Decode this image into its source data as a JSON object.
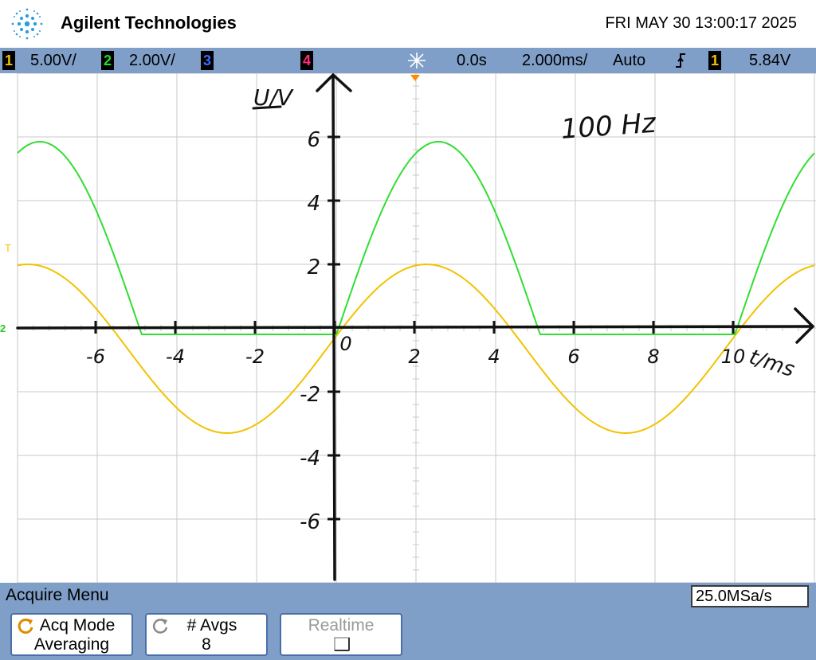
{
  "header": {
    "brand": "Agilent Technologies",
    "datetime": "FRI MAY 30 13:00:17 2025"
  },
  "status": {
    "ch1": {
      "num": "1",
      "scale": "5.00V/",
      "color": "#f2c200"
    },
    "ch2": {
      "num": "2",
      "scale": "2.00V/",
      "color": "#22dd22"
    },
    "ch3": {
      "num": "3",
      "color": "#3a6cff"
    },
    "ch4": {
      "num": "4",
      "color": "#ff2e7a"
    },
    "delay": "0.0s",
    "timebase": "2.000ms/",
    "trigger_mode": "Auto",
    "trigger_source": "1",
    "trigger_level": "5.84V"
  },
  "screen": {
    "trig_marker": "T",
    "ch2_ground_marker": "2",
    "ch1_color": "#f2c200",
    "ch2_color": "#33dd33",
    "grid_color": "#c8c8c8"
  },
  "chart_data": {
    "type": "line",
    "title": "",
    "handwritten_note": "100 Hz",
    "xlabel": "t/ms",
    "ylabel": "U/V",
    "xlim": [
      -8,
      12
    ],
    "ylim": [
      -8,
      8
    ],
    "x_ticks": [
      -6,
      -4,
      -2,
      0,
      2,
      4,
      6,
      8,
      10
    ],
    "x_tick_labels": [
      "-6",
      "-4",
      "-2",
      "0",
      "2",
      "4",
      "6",
      "8",
      "10"
    ],
    "y_ticks": [
      6,
      4,
      2,
      -2,
      -4,
      -6
    ],
    "y_tick_labels": [
      "6",
      "4",
      "2",
      "-2",
      "-4",
      "-6"
    ],
    "series": [
      {
        "channel": "1",
        "waveform": "sine",
        "frequency_hz": 100,
        "amplitude_v": 2.65,
        "offset_v": -0.65,
        "zero_crossing_ms": -0.2
      },
      {
        "channel": "2",
        "waveform": "half-wave rectified sine",
        "frequency_hz": 100,
        "peak_v": 5.85,
        "floor_v": -0.2,
        "zero_crossing_ms": 0.1
      }
    ]
  },
  "acquire": {
    "menu_title": "Acquire Menu",
    "sample_rate": "25.0MSa/s",
    "softkeys": [
      {
        "top": "Acq Mode",
        "bottom": "Averaging"
      },
      {
        "top": "# Avgs",
        "bottom": "8"
      },
      {
        "top": "Realtime",
        "bottom": ""
      }
    ]
  }
}
